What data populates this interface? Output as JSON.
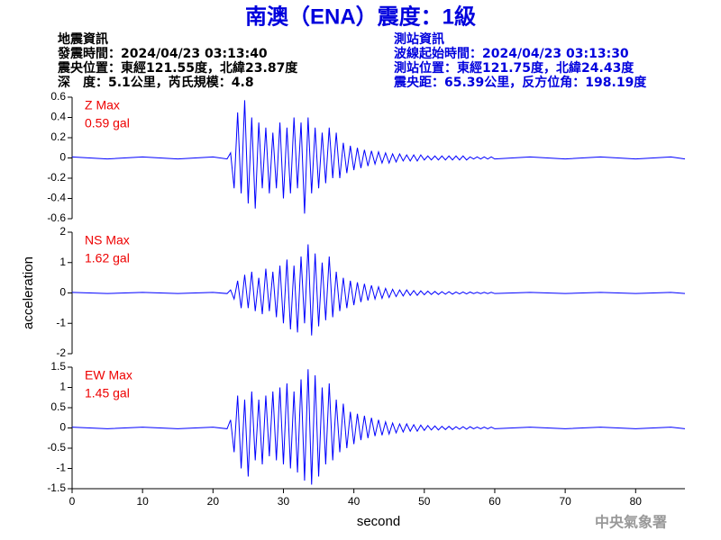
{
  "header": {
    "title": "南澳（ENA）震度：1級",
    "left": [
      "地震資訊",
      "發震時間：2024/04/23 03:13:40",
      "震央位置：東經121.55度，北緯23.87度",
      "深　度：5.1公里，芮氏規模：4.8"
    ],
    "right": [
      "測站資訊",
      "波線起始時間：2024/04/23 03:13:30",
      "測站位置：東經121.75度，北緯24.43度",
      "震央距：65.39公里，反方位角：198.19度"
    ]
  },
  "footer": "中央氣象署",
  "chart_data": [
    {
      "type": "line",
      "annotations": [
        "Z Max",
        "0.59 gal"
      ],
      "color": "#0000ff",
      "xlim": [
        0,
        87
      ],
      "ylim": [
        -0.6,
        0.6
      ],
      "yticks": [
        0.6,
        0.4,
        0.2,
        0,
        -0.2,
        -0.4,
        -0.6
      ],
      "x": [
        0,
        5,
        10,
        15,
        20,
        22,
        22.5,
        23,
        23.5,
        24,
        24.5,
        25,
        25.5,
        26,
        26.5,
        27,
        27.5,
        28,
        28.5,
        29,
        29.5,
        30,
        30.5,
        31,
        31.5,
        32,
        32.5,
        33,
        33.5,
        34,
        34.5,
        35,
        35.5,
        36,
        36.5,
        37,
        37.5,
        38,
        38.5,
        39,
        39.5,
        40,
        40.5,
        41,
        41.5,
        42,
        42.5,
        43,
        43.5,
        44,
        44.5,
        45,
        45.5,
        46,
        46.5,
        47,
        47.5,
        48,
        48.5,
        49,
        49.5,
        50,
        50.5,
        51,
        51.5,
        52,
        52.5,
        53,
        53.5,
        54,
        54.5,
        55,
        55.5,
        56,
        56.5,
        57,
        57.5,
        58,
        58.5,
        59,
        59.5,
        60,
        65,
        70,
        75,
        80,
        85,
        87
      ],
      "values": [
        0.01,
        -0.01,
        0.01,
        -0.01,
        0.01,
        -0.01,
        0.05,
        -0.3,
        0.45,
        -0.35,
        0.57,
        -0.45,
        0.4,
        -0.5,
        0.35,
        -0.3,
        0.3,
        -0.35,
        0.25,
        -0.3,
        0.35,
        -0.4,
        0.3,
        -0.35,
        0.4,
        -0.3,
        0.35,
        -0.55,
        0.4,
        -0.35,
        0.3,
        -0.3,
        0.25,
        -0.25,
        0.3,
        -0.2,
        0.25,
        -0.2,
        0.15,
        -0.15,
        0.12,
        -0.12,
        0.1,
        -0.1,
        0.08,
        -0.08,
        0.07,
        -0.06,
        0.06,
        -0.05,
        0.05,
        -0.05,
        0.04,
        -0.04,
        0.04,
        -0.03,
        0.03,
        -0.03,
        0.03,
        -0.03,
        0.03,
        -0.02,
        0.02,
        -0.02,
        0.02,
        -0.02,
        0.02,
        -0.02,
        0.02,
        -0.02,
        0.02,
        -0.02,
        0.02,
        -0.02,
        0.01,
        -0.01,
        0.01,
        -0.01,
        0.01,
        -0.01,
        0.01,
        -0.01,
        0.01,
        -0.01,
        0.01,
        -0.01,
        0.01,
        -0.01
      ]
    },
    {
      "type": "line",
      "annotations": [
        "NS Max",
        "1.62 gal"
      ],
      "ylabel": "acceleration",
      "color": "#0000ff",
      "xlim": [
        0,
        87
      ],
      "ylim": [
        -2,
        2
      ],
      "yticks": [
        2,
        1,
        0,
        -1,
        -2
      ],
      "x": [
        0,
        5,
        10,
        15,
        20,
        22,
        22.5,
        23,
        23.5,
        24,
        24.5,
        25,
        25.5,
        26,
        26.5,
        27,
        27.5,
        28,
        28.5,
        29,
        29.5,
        30,
        30.5,
        31,
        31.5,
        32,
        32.5,
        33,
        33.5,
        34,
        34.5,
        35,
        35.5,
        36,
        36.5,
        37,
        37.5,
        38,
        38.5,
        39,
        39.5,
        40,
        40.5,
        41,
        41.5,
        42,
        42.5,
        43,
        43.5,
        44,
        44.5,
        45,
        45.5,
        46,
        46.5,
        47,
        47.5,
        48,
        48.5,
        49,
        49.5,
        50,
        50.5,
        51,
        51.5,
        52,
        52.5,
        53,
        53.5,
        54,
        54.5,
        55,
        55.5,
        56,
        56.5,
        57,
        57.5,
        58,
        58.5,
        59,
        59.5,
        60,
        65,
        70,
        75,
        80,
        85,
        87
      ],
      "values": [
        0.02,
        -0.02,
        0.02,
        -0.02,
        0.02,
        -0.02,
        0.1,
        -0.2,
        0.4,
        -0.5,
        0.6,
        -0.5,
        0.7,
        -0.6,
        0.5,
        -0.7,
        0.8,
        -0.6,
        0.7,
        -0.8,
        0.9,
        -1.0,
        1.1,
        -1.2,
        0.9,
        -1.3,
        1.2,
        -1.0,
        1.6,
        -1.4,
        1.3,
        -1.1,
        1.0,
        -0.9,
        1.2,
        -0.8,
        0.7,
        -0.6,
        0.5,
        -0.5,
        0.4,
        -0.4,
        0.35,
        -0.3,
        0.3,
        -0.25,
        0.25,
        -0.2,
        0.2,
        -0.18,
        0.15,
        -0.15,
        0.12,
        -0.12,
        0.1,
        -0.1,
        0.1,
        -0.08,
        0.08,
        -0.08,
        0.07,
        -0.06,
        0.06,
        -0.05,
        0.05,
        -0.05,
        0.04,
        -0.04,
        0.04,
        -0.04,
        0.03,
        -0.03,
        0.03,
        -0.03,
        0.03,
        -0.02,
        0.02,
        -0.02,
        0.02,
        -0.02,
        0.02,
        -0.02,
        0.02,
        -0.02,
        0.02,
        -0.02,
        0.02,
        -0.02
      ]
    },
    {
      "type": "line",
      "annotations": [
        "EW Max",
        "1.45 gal"
      ],
      "xlabel": "second",
      "color": "#0000ff",
      "xlim": [
        0,
        87
      ],
      "ylim": [
        -1.5,
        1.5
      ],
      "yticks": [
        1.5,
        1,
        0.5,
        0,
        -0.5,
        -1,
        -1.5
      ],
      "xticks": [
        0,
        10,
        20,
        30,
        40,
        50,
        60,
        70,
        80
      ],
      "x": [
        0,
        5,
        10,
        15,
        20,
        22,
        22.5,
        23,
        23.5,
        24,
        24.5,
        25,
        25.5,
        26,
        26.5,
        27,
        27.5,
        28,
        28.5,
        29,
        29.5,
        30,
        30.5,
        31,
        31.5,
        32,
        32.5,
        33,
        33.5,
        34,
        34.5,
        35,
        35.5,
        36,
        36.5,
        37,
        37.5,
        38,
        38.5,
        39,
        39.5,
        40,
        40.5,
        41,
        41.5,
        42,
        42.5,
        43,
        43.5,
        44,
        44.5,
        45,
        45.5,
        46,
        46.5,
        47,
        47.5,
        48,
        48.5,
        49,
        49.5,
        50,
        50.5,
        51,
        51.5,
        52,
        52.5,
        53,
        53.5,
        54,
        54.5,
        55,
        55.5,
        56,
        56.5,
        57,
        57.5,
        58,
        58.5,
        59,
        59.5,
        60,
        65,
        70,
        75,
        80,
        85,
        87
      ],
      "values": [
        0.02,
        -0.02,
        0.02,
        -0.02,
        0.02,
        -0.02,
        0.2,
        -0.6,
        0.8,
        -1.0,
        0.7,
        -1.2,
        0.9,
        -0.8,
        0.7,
        -0.9,
        0.8,
        -0.7,
        0.9,
        -0.8,
        1.0,
        -0.9,
        1.1,
        -1.0,
        0.9,
        -1.1,
        1.2,
        -1.3,
        1.45,
        -1.4,
        1.3,
        -1.2,
        1.0,
        -0.9,
        1.1,
        -0.8,
        0.7,
        -0.6,
        0.6,
        -0.5,
        0.4,
        -0.4,
        0.35,
        -0.3,
        0.3,
        -0.25,
        0.25,
        -0.2,
        0.2,
        -0.18,
        0.15,
        -0.15,
        0.12,
        -0.12,
        0.1,
        -0.1,
        0.1,
        -0.08,
        0.08,
        -0.08,
        0.07,
        -0.06,
        0.06,
        -0.05,
        0.05,
        -0.05,
        0.04,
        -0.04,
        0.04,
        -0.04,
        0.03,
        -0.03,
        0.03,
        -0.03,
        0.03,
        -0.02,
        0.02,
        -0.02,
        0.02,
        -0.02,
        0.02,
        -0.02,
        0.02,
        -0.02,
        0.02,
        -0.02,
        0.02,
        -0.02
      ]
    }
  ]
}
